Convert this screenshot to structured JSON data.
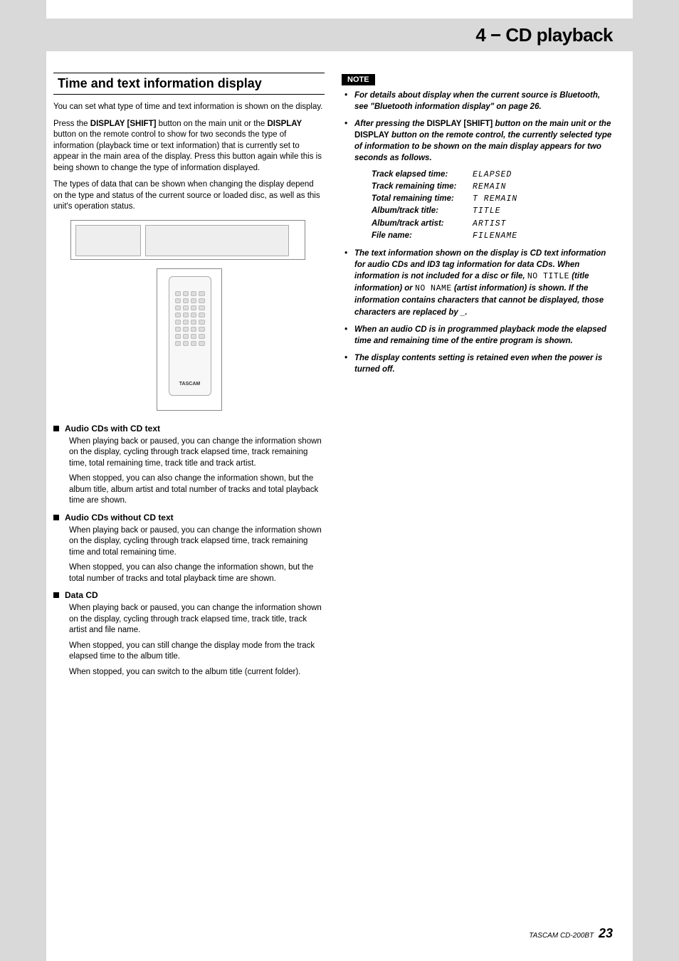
{
  "chapter": "4 − CD playback",
  "section_title": "Time and text information display",
  "intro": [
    "You can set what type of time and text information is shown on the display.",
    "Press the DISPLAY [SHIFT] button on the main unit or the DISPLAY button on the remote control to show for two seconds the type of information (playback time or text information) that is currently set to appear in the main area of the display. Press this button again while this is being shown to change the type of information displayed.",
    "The types of data that can be shown when changing the display depend on the type and status of the current source or loaded disc, as well as this unit's operation status."
  ],
  "subsections": [
    {
      "title": "Audio CDs with CD text",
      "paras": [
        "When playing back or paused, you can change the information shown on the display, cycling through track elapsed time, track remaining time, total remaining time, track title and track artist.",
        "When stopped, you can also change the information shown, but the album title, album artist and total number of tracks and total playback time are shown."
      ]
    },
    {
      "title": "Audio CDs without CD text",
      "paras": [
        "When playing back or paused, you can change the information shown on the display, cycling through track elapsed time, track remaining time and total remaining time.",
        "When stopped, you can also change the information shown, but the total number of tracks and total playback time are shown."
      ]
    },
    {
      "title": "Data CD",
      "paras": [
        "When playing back or paused, you can change the information shown on the display, cycling through track elapsed time, track title, track artist and file name.",
        "When stopped, you can still change the display mode from the track elapsed time to the album title.",
        "When stopped, you can switch to the album title (current folder)."
      ]
    }
  ],
  "note_label": "NOTE",
  "notes_top": [
    "For details about display when the current source is Bluetooth, see \"Bluetooth information display\" on page 26."
  ],
  "note_after_press": {
    "pre": "After pressing the ",
    "b1": "DISPLAY [SHIFT]",
    "mid1": " button on the main unit or the ",
    "b2": "DISPLAY",
    "post": " button on the remote control, the currently selected type of information to be shown on the main display appears for two seconds as follows."
  },
  "info_rows": [
    {
      "label": "Track elapsed time:",
      "val": "ELAPSED"
    },
    {
      "label": "Track remaining time:",
      "val": "REMAIN"
    },
    {
      "label": "Total remaining time:",
      "val": "T REMAIN"
    },
    {
      "label": "Album/track title:",
      "val": "TITLE"
    },
    {
      "label": "Album/track artist:",
      "val": "ARTIST"
    },
    {
      "label": "File name:",
      "val": "FILENAME"
    }
  ],
  "note_text_info": {
    "pre": "The text information shown on the display is CD text information for audio CDs and ID3 tag information for data CDs. When information is not included for a disc or file, ",
    "m1": "NO TITLE",
    "mid1": " (title information) or ",
    "m2": "NO NAME",
    "post": " (artist information) is shown. If the information contains characters that cannot be displayed, those characters are replaced by _."
  },
  "notes_bottom": [
    "When an audio CD is in programmed playback mode the elapsed time and remaining time of the entire program is shown.",
    "The display contents setting is retained even when the power is turned off."
  ],
  "footer_model": "TASCAM  CD-200BT",
  "footer_page": "23"
}
